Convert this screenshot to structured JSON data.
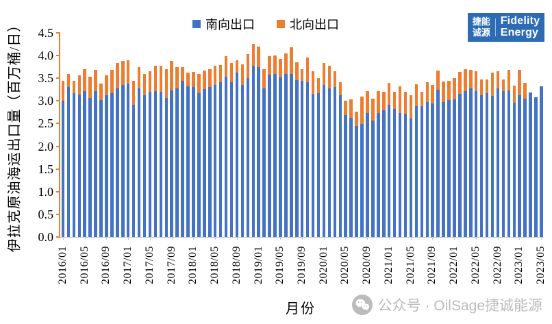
{
  "legend": {
    "south_label": "南向出口",
    "north_label": "北向出口"
  },
  "logo": {
    "cn_line1": "捷能",
    "cn_line2": "诚源",
    "en_line1": "Fidelity",
    "en_line2": "Energy"
  },
  "axes": {
    "y_title": "伊拉克原油海运出口量（百万桶/日）",
    "x_title": "月份",
    "yticks": [
      "0.0",
      "0.5",
      "1.0",
      "1.5",
      "2.0",
      "2.5",
      "3.0",
      "3.5",
      "4.0",
      "4.5"
    ]
  },
  "watermark": {
    "icon": "wechat-icon",
    "text": "公众号 · OilSage捷诚能源"
  },
  "colors": {
    "south": "#4472C4",
    "north": "#ED7D31",
    "y_axis_line": "#ED7D31",
    "x_axis_line": "#C9C9C9",
    "logo_bg": "#2D6CB5",
    "watermark_text": "#BBBBBB"
  },
  "chart_data": {
    "type": "bar",
    "stacked": true,
    "grid": false,
    "legend_position": "top-center",
    "ylim": [
      0,
      4.5
    ],
    "ytick_step": 0.5,
    "ylabel": "伊拉克原油海运出口量（百万桶/日）",
    "xlabel": "月份",
    "x": [
      "2016/01",
      "2016/02",
      "2016/03",
      "2016/04",
      "2016/05",
      "2016/06",
      "2016/07",
      "2016/08",
      "2016/09",
      "2016/10",
      "2016/11",
      "2016/12",
      "2017/01",
      "2017/02",
      "2017/03",
      "2017/04",
      "2017/05",
      "2017/06",
      "2017/07",
      "2017/08",
      "2017/09",
      "2017/10",
      "2017/11",
      "2017/12",
      "2018/01",
      "2018/02",
      "2018/03",
      "2018/04",
      "2018/05",
      "2018/06",
      "2018/07",
      "2018/08",
      "2018/09",
      "2018/10",
      "2018/11",
      "2018/12",
      "2019/01",
      "2019/02",
      "2019/03",
      "2019/04",
      "2019/05",
      "2019/06",
      "2019/07",
      "2019/08",
      "2019/09",
      "2019/10",
      "2019/11",
      "2019/12",
      "2020/01",
      "2020/02",
      "2020/03",
      "2020/04",
      "2020/05",
      "2020/06",
      "2020/07",
      "2020/08",
      "2020/09",
      "2020/10",
      "2020/11",
      "2020/12",
      "2021/01",
      "2021/02",
      "2021/03",
      "2021/04",
      "2021/05",
      "2021/06",
      "2021/07",
      "2021/08",
      "2021/09",
      "2021/10",
      "2021/11",
      "2021/12",
      "2022/01",
      "2022/02",
      "2022/03",
      "2022/04",
      "2022/05",
      "2022/06",
      "2022/07",
      "2022/08",
      "2022/09",
      "2022/10",
      "2022/11",
      "2022/12",
      "2023/01",
      "2023/02",
      "2023/03",
      "2023/04",
      "2023/05"
    ],
    "xtick_labels_shown": [
      "2016/01",
      "2016/05",
      "2016/09",
      "2017/01",
      "2017/05",
      "2017/09",
      "2018/01",
      "2018/05",
      "2018/09",
      "2019/01",
      "2019/05",
      "2019/09",
      "2020/01",
      "2020/05",
      "2020/09",
      "2021/01",
      "2021/05",
      "2021/09",
      "2022/01",
      "2022/05",
      "2022/09",
      "2023/01",
      "2023/05"
    ],
    "series": [
      {
        "name": "南向出口",
        "color": "#4472C4",
        "values": [
          3.0,
          3.3,
          3.17,
          3.14,
          3.21,
          3.07,
          3.21,
          3.02,
          3.13,
          3.17,
          3.28,
          3.35,
          3.38,
          2.92,
          3.28,
          3.12,
          3.2,
          3.22,
          3.2,
          3.07,
          3.23,
          3.27,
          3.45,
          3.32,
          3.31,
          3.17,
          3.26,
          3.3,
          3.36,
          3.41,
          3.54,
          3.42,
          3.63,
          3.35,
          3.5,
          3.78,
          3.75,
          3.27,
          3.58,
          3.6,
          3.52,
          3.6,
          3.59,
          3.46,
          3.45,
          3.42,
          3.16,
          3.17,
          3.35,
          3.27,
          3.31,
          3.12,
          2.69,
          2.63,
          2.44,
          2.49,
          2.73,
          2.57,
          2.74,
          2.79,
          2.92,
          2.82,
          2.74,
          2.72,
          2.62,
          2.89,
          2.89,
          2.97,
          2.95,
          3.25,
          2.97,
          3.02,
          3.03,
          3.16,
          3.22,
          3.27,
          3.22,
          3.12,
          3.17,
          3.11,
          3.28,
          3.21,
          3.23,
          2.96,
          3.13,
          3.05,
          3.18,
          3.08,
          3.32
        ]
      },
      {
        "name": "北向出口",
        "color": "#ED7D31",
        "values": [
          0.45,
          0.3,
          0.27,
          0.43,
          0.49,
          0.47,
          0.47,
          0.36,
          0.44,
          0.51,
          0.55,
          0.53,
          0.52,
          0.53,
          0.47,
          0.47,
          0.45,
          0.55,
          0.58,
          0.63,
          0.65,
          0.47,
          0.29,
          0.3,
          0.33,
          0.42,
          0.41,
          0.4,
          0.42,
          0.38,
          0.44,
          0.42,
          0.27,
          0.46,
          0.53,
          0.48,
          0.45,
          0.43,
          0.4,
          0.4,
          0.41,
          0.45,
          0.59,
          0.39,
          0.25,
          0.54,
          0.5,
          0.33,
          0.49,
          0.51,
          0.34,
          0.3,
          0.31,
          0.41,
          0.33,
          0.6,
          0.48,
          0.48,
          0.48,
          0.41,
          0.48,
          0.38,
          0.58,
          0.48,
          0.5,
          0.48,
          0.31,
          0.44,
          0.4,
          0.42,
          0.46,
          0.43,
          0.47,
          0.48,
          0.48,
          0.41,
          0.43,
          0.35,
          0.3,
          0.51,
          0.37,
          0.26,
          0.46,
          0.37,
          0.56,
          0.35,
          0.0,
          0.0,
          0.0
        ]
      }
    ]
  }
}
